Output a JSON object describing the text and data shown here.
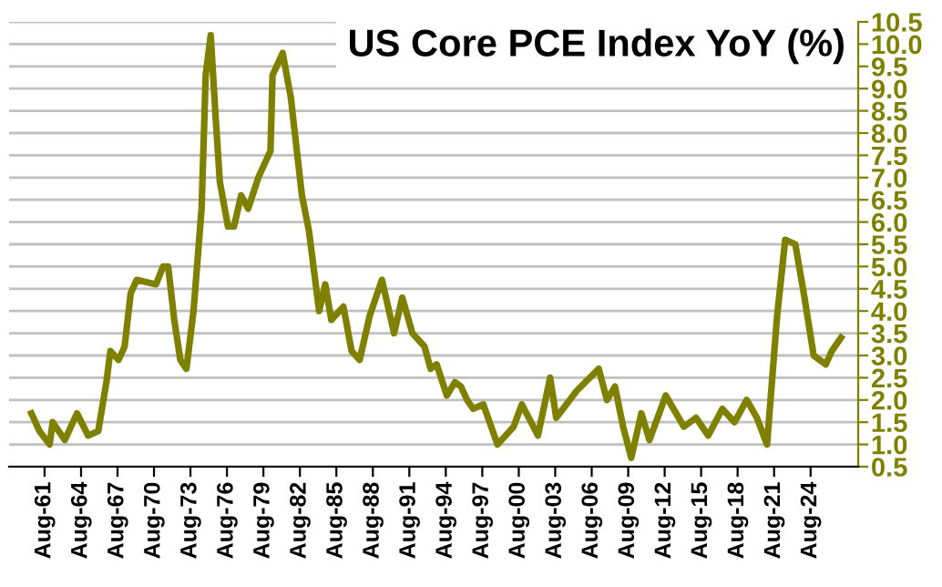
{
  "chart_data": {
    "type": "line",
    "title": "US Core PCE Index YoY (%)",
    "x": [
      "1960-07",
      "1961-03",
      "1962-01",
      "1962-04",
      "1963-04",
      "1964-04",
      "1965-03",
      "1966-01",
      "1966-09",
      "1967-01",
      "1967-09",
      "1968-03",
      "1968-09",
      "1969-03",
      "1970-10",
      "1971-05",
      "1971-10",
      "1972-04",
      "1972-10",
      "1973-04",
      "1973-11",
      "1974-07",
      "1974-11",
      "1975-04",
      "1975-09",
      "1976-01",
      "1976-09",
      "1977-03",
      "1977-10",
      "1978-05",
      "1979-03",
      "1980-03",
      "1980-05",
      "1981-03",
      "1981-11",
      "1982-10",
      "1983-05",
      "1984-03",
      "1984-09",
      "1985-03",
      "1986-03",
      "1986-11",
      "1987-07",
      "1988-05",
      "1989-05",
      "1990-05",
      "1991-01",
      "1991-11",
      "1992-11",
      "1993-05",
      "1993-11",
      "1994-09",
      "1995-05",
      "1995-11",
      "1996-05",
      "1996-11",
      "1997-09",
      "1998-11",
      "2000-03",
      "2000-11",
      "2002-03",
      "2003-03",
      "2003-09",
      "2005-05",
      "2007-03",
      "2007-11",
      "2008-07",
      "2009-03",
      "2009-11",
      "2010-09",
      "2011-05",
      "2012-09",
      "2014-03",
      "2015-03",
      "2016-03",
      "2017-05",
      "2018-05",
      "2019-05",
      "2020-03",
      "2021-01",
      "2021-11",
      "2022-07",
      "2023-05",
      "2024-02",
      "2024-11",
      "2025-11",
      "2026-05",
      "2027-02"
    ],
    "series": [
      {
        "color": "#808000",
        "values": [
          1.7,
          1.3,
          1.0,
          1.5,
          1.1,
          1.7,
          1.2,
          1.3,
          2.4,
          3.1,
          2.9,
          3.2,
          4.4,
          4.7,
          4.6,
          5.0,
          5.0,
          3.8,
          2.9,
          2.7,
          4.0,
          6.3,
          9.3,
          10.2,
          8.3,
          6.9,
          5.9,
          5.9,
          6.6,
          6.3,
          7.0,
          7.6,
          9.3,
          9.8,
          8.8,
          6.6,
          5.8,
          4.0,
          4.6,
          3.8,
          4.1,
          3.1,
          2.9,
          3.9,
          4.7,
          3.5,
          4.3,
          3.5,
          3.2,
          2.7,
          2.8,
          2.1,
          2.4,
          2.3,
          2.0,
          1.8,
          1.9,
          1.0,
          1.4,
          1.9,
          1.2,
          2.5,
          1.6,
          2.2,
          2.7,
          2.0,
          2.3,
          1.4,
          0.7,
          1.7,
          1.1,
          2.1,
          1.4,
          1.6,
          1.2,
          1.8,
          1.5,
          2.0,
          1.6,
          1.0,
          3.9,
          5.6,
          5.5,
          4.3,
          3.0,
          2.8,
          3.1,
          3.4
        ]
      }
    ],
    "xlim": [
      "1958-09",
      "2028-07"
    ],
    "xticks": [
      {
        "value": "1961-08",
        "label": "Aug-61"
      },
      {
        "value": "1964-08",
        "label": "Aug-64"
      },
      {
        "value": "1967-08",
        "label": "Aug-67"
      },
      {
        "value": "1970-08",
        "label": "Aug-70"
      },
      {
        "value": "1973-08",
        "label": "Aug-73"
      },
      {
        "value": "1976-08",
        "label": "Aug-76"
      },
      {
        "value": "1979-08",
        "label": "Aug-79"
      },
      {
        "value": "1982-08",
        "label": "Aug-82"
      },
      {
        "value": "1985-08",
        "label": "Aug-85"
      },
      {
        "value": "1988-08",
        "label": "Aug-88"
      },
      {
        "value": "1991-08",
        "label": "Aug-91"
      },
      {
        "value": "1994-08",
        "label": "Aug-94"
      },
      {
        "value": "1997-08",
        "label": "Aug-97"
      },
      {
        "value": "2000-08",
        "label": "Aug-00"
      },
      {
        "value": "2003-08",
        "label": "Aug-03"
      },
      {
        "value": "2006-08",
        "label": "Aug-06"
      },
      {
        "value": "2009-08",
        "label": "Aug-09"
      },
      {
        "value": "2012-08",
        "label": "Aug-12"
      },
      {
        "value": "2015-08",
        "label": "Aug-15"
      },
      {
        "value": "2018-08",
        "label": "Aug-18"
      },
      {
        "value": "2021-08",
        "label": "Aug-21"
      },
      {
        "value": "2024-08",
        "label": "Aug-24"
      }
    ],
    "ylim": [
      0.5,
      10.5
    ],
    "yticks": [
      {
        "value": 0.5,
        "label": "0.5"
      },
      {
        "value": 1,
        "label": "1.0"
      },
      {
        "value": 1.5,
        "label": "1.5"
      },
      {
        "value": 2,
        "label": "2.0"
      },
      {
        "value": 2.5,
        "label": "2.5"
      },
      {
        "value": 3,
        "label": "3.0"
      },
      {
        "value": 3.5,
        "label": "3.5"
      },
      {
        "value": 4,
        "label": "4.0"
      },
      {
        "value": 4.5,
        "label": "4.5"
      },
      {
        "value": 5,
        "label": "5.0"
      },
      {
        "value": 5.5,
        "label": "5.5"
      },
      {
        "value": 6,
        "label": "6.0"
      },
      {
        "value": 6.5,
        "label": "6.5"
      },
      {
        "value": 7,
        "label": "7.0"
      },
      {
        "value": 7.5,
        "label": "7.5"
      },
      {
        "value": 8,
        "label": "8.0"
      },
      {
        "value": 8.5,
        "label": "8.5"
      },
      {
        "value": 9,
        "label": "9.0"
      },
      {
        "value": 9.5,
        "label": "9.5"
      },
      {
        "value": 10,
        "label": "10.0"
      },
      {
        "value": 10.5,
        "label": "10.5"
      }
    ],
    "grid": "y",
    "legend": false,
    "marker": "none",
    "line_style": "solid"
  }
}
